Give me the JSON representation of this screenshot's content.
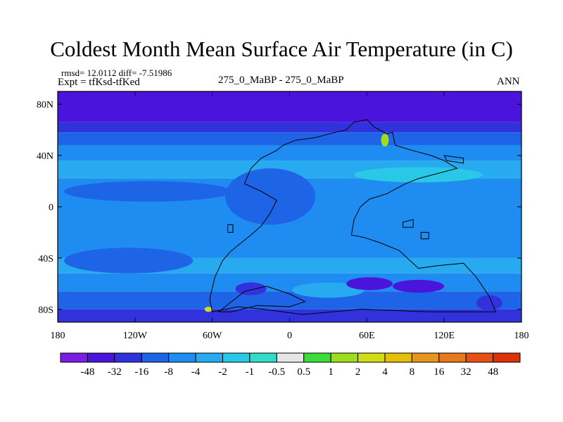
{
  "chart_data": {
    "type": "heatmap",
    "title": "Coldest Month Mean Surface Air Temperature (in C)",
    "stats": {
      "line1": "rmsd= 12.0112 diff= -7.51986",
      "line2": "Expt = tfKsd-tfKed"
    },
    "center_label": "275_0_MaBP - 275_0_MaBP",
    "right_label": "ANN",
    "x_range": [
      -180,
      180
    ],
    "y_range": [
      -90,
      90
    ],
    "x_ticks": [
      {
        "value": -180,
        "label": "180"
      },
      {
        "value": -120,
        "label": "120W"
      },
      {
        "value": -60,
        "label": "60W"
      },
      {
        "value": 0,
        "label": "0"
      },
      {
        "value": 60,
        "label": "60E"
      },
      {
        "value": 120,
        "label": "120E"
      },
      {
        "value": 180,
        "label": "180"
      }
    ],
    "y_ticks": [
      {
        "value": 80,
        "label": "80N"
      },
      {
        "value": 40,
        "label": "40N"
      },
      {
        "value": 0,
        "label": "0"
      },
      {
        "value": -40,
        "label": "40S"
      },
      {
        "value": -80,
        "label": "80S"
      }
    ],
    "colorbar": {
      "colors": [
        "#7a1ee6",
        "#4a14dc",
        "#3232dc",
        "#1e64e6",
        "#1e8cf0",
        "#28aaf0",
        "#28c8e6",
        "#32dcc8",
        "#e6e6e6",
        "#3cdc3c",
        "#a0dc1e",
        "#d2dc14",
        "#e6be0a",
        "#e6961e",
        "#e6781e",
        "#e65014",
        "#dc320a"
      ],
      "labels": [
        "-48",
        "-32",
        "-16",
        "-8",
        "-4",
        "-2",
        "-1",
        "-0.5",
        "0.5",
        "1",
        "2",
        "4",
        "8",
        "16",
        "32",
        "48"
      ]
    },
    "bands": [
      {
        "lat_top": 90,
        "lat_bot": 66,
        "level": 1
      },
      {
        "lat_top": 66,
        "lat_bot": 58,
        "level": 2
      },
      {
        "lat_top": 58,
        "lat_bot": 48,
        "level": 3
      },
      {
        "lat_top": 48,
        "lat_bot": 36,
        "level": 4
      },
      {
        "lat_top": 36,
        "lat_bot": 22,
        "level": 5
      },
      {
        "lat_top": 22,
        "lat_bot": -40,
        "level": 4
      },
      {
        "lat_top": -40,
        "lat_bot": -52,
        "level": 5
      },
      {
        "lat_top": -52,
        "lat_bot": -66,
        "level": 4
      },
      {
        "lat_top": -66,
        "lat_bot": -80,
        "level": 3
      },
      {
        "lat_top": -80,
        "lat_bot": -90,
        "level": 2
      }
    ],
    "anomalies": [
      {
        "lon": -110,
        "lat": 12,
        "rlon": 65,
        "rlat": 8,
        "level": 3
      },
      {
        "lon": -125,
        "lat": -42,
        "rlon": 50,
        "rlat": 10,
        "level": 3
      },
      {
        "lon": -15,
        "lat": 8,
        "rlon": 35,
        "rlat": 22,
        "level": 3
      },
      {
        "lon": 100,
        "lat": 25,
        "rlon": 50,
        "rlat": 6,
        "level": 6
      },
      {
        "lon": 30,
        "lat": -65,
        "rlon": 28,
        "rlat": 6,
        "level": 5
      },
      {
        "lon": 100,
        "lat": -62,
        "rlon": 20,
        "rlat": 5,
        "level": 1
      },
      {
        "lon": 62,
        "lat": -60,
        "rlon": 18,
        "rlat": 5,
        "level": 1
      },
      {
        "lon": -30,
        "lat": -64,
        "rlon": 12,
        "rlat": 5,
        "level": 2
      },
      {
        "lon": 155,
        "lat": -75,
        "rlon": 10,
        "rlat": 6,
        "level": 2
      },
      {
        "lon": 74,
        "lat": 52,
        "rlon": 3,
        "rlat": 5,
        "level": 10
      },
      {
        "lon": -63,
        "lat": -80,
        "rlon": 3,
        "rlat": 2,
        "level": 11
      }
    ],
    "outlines": [
      [
        [
          -60,
          -82
        ],
        [
          -62,
          -72
        ],
        [
          -58,
          -55
        ],
        [
          -52,
          -42
        ],
        [
          -46,
          -35
        ],
        [
          -40,
          -30
        ],
        [
          -30,
          -22
        ],
        [
          -22,
          -15
        ],
        [
          -15,
          -5
        ],
        [
          -10,
          5
        ],
        [
          -22,
          12
        ],
        [
          -35,
          18
        ],
        [
          -30,
          30
        ],
        [
          -22,
          38
        ],
        [
          -10,
          44
        ],
        [
          -5,
          48
        ],
        [
          5,
          52
        ],
        [
          20,
          54
        ],
        [
          35,
          58
        ],
        [
          44,
          60
        ],
        [
          50,
          66
        ],
        [
          60,
          68
        ],
        [
          66,
          62
        ],
        [
          75,
          57
        ],
        [
          80,
          58
        ],
        [
          82,
          48
        ],
        [
          95,
          44
        ],
        [
          110,
          40
        ],
        [
          120,
          36
        ],
        [
          130,
          30
        ],
        [
          115,
          26
        ],
        [
          100,
          22
        ],
        [
          90,
          18
        ],
        [
          75,
          10
        ],
        [
          62,
          6
        ],
        [
          55,
          0
        ],
        [
          50,
          -10
        ],
        [
          48,
          -22
        ],
        [
          58,
          -24
        ],
        [
          70,
          -28
        ],
        [
          85,
          -34
        ],
        [
          100,
          -48
        ],
        [
          115,
          -46
        ],
        [
          135,
          -44
        ],
        [
          145,
          -55
        ],
        [
          155,
          -70
        ],
        [
          160,
          -82
        ],
        [
          110,
          -82
        ],
        [
          55,
          -80
        ],
        [
          10,
          -84
        ],
        [
          -20,
          -80
        ],
        [
          -40,
          -78
        ],
        [
          -60,
          -82
        ]
      ],
      [
        [
          -55,
          -82
        ],
        [
          -35,
          -66
        ],
        [
          -18,
          -62
        ],
        [
          0,
          -68
        ],
        [
          12,
          -74
        ],
        [
          0,
          -78
        ],
        [
          -25,
          -77
        ],
        [
          -45,
          -82
        ],
        [
          -55,
          -82
        ]
      ],
      [
        [
          88,
          -12
        ],
        [
          96,
          -10
        ],
        [
          96,
          -16
        ],
        [
          88,
          -16
        ],
        [
          88,
          -12
        ]
      ],
      [
        [
          102,
          -20
        ],
        [
          108,
          -20
        ],
        [
          108,
          -25
        ],
        [
          102,
          -25
        ],
        [
          102,
          -20
        ]
      ],
      [
        [
          -48,
          -14
        ],
        [
          -44,
          -14
        ],
        [
          -44,
          -20
        ],
        [
          -48,
          -20
        ],
        [
          -48,
          -14
        ]
      ],
      [
        [
          120,
          40
        ],
        [
          135,
          38
        ],
        [
          135,
          34
        ],
        [
          122,
          36
        ],
        [
          120,
          40
        ]
      ]
    ]
  }
}
